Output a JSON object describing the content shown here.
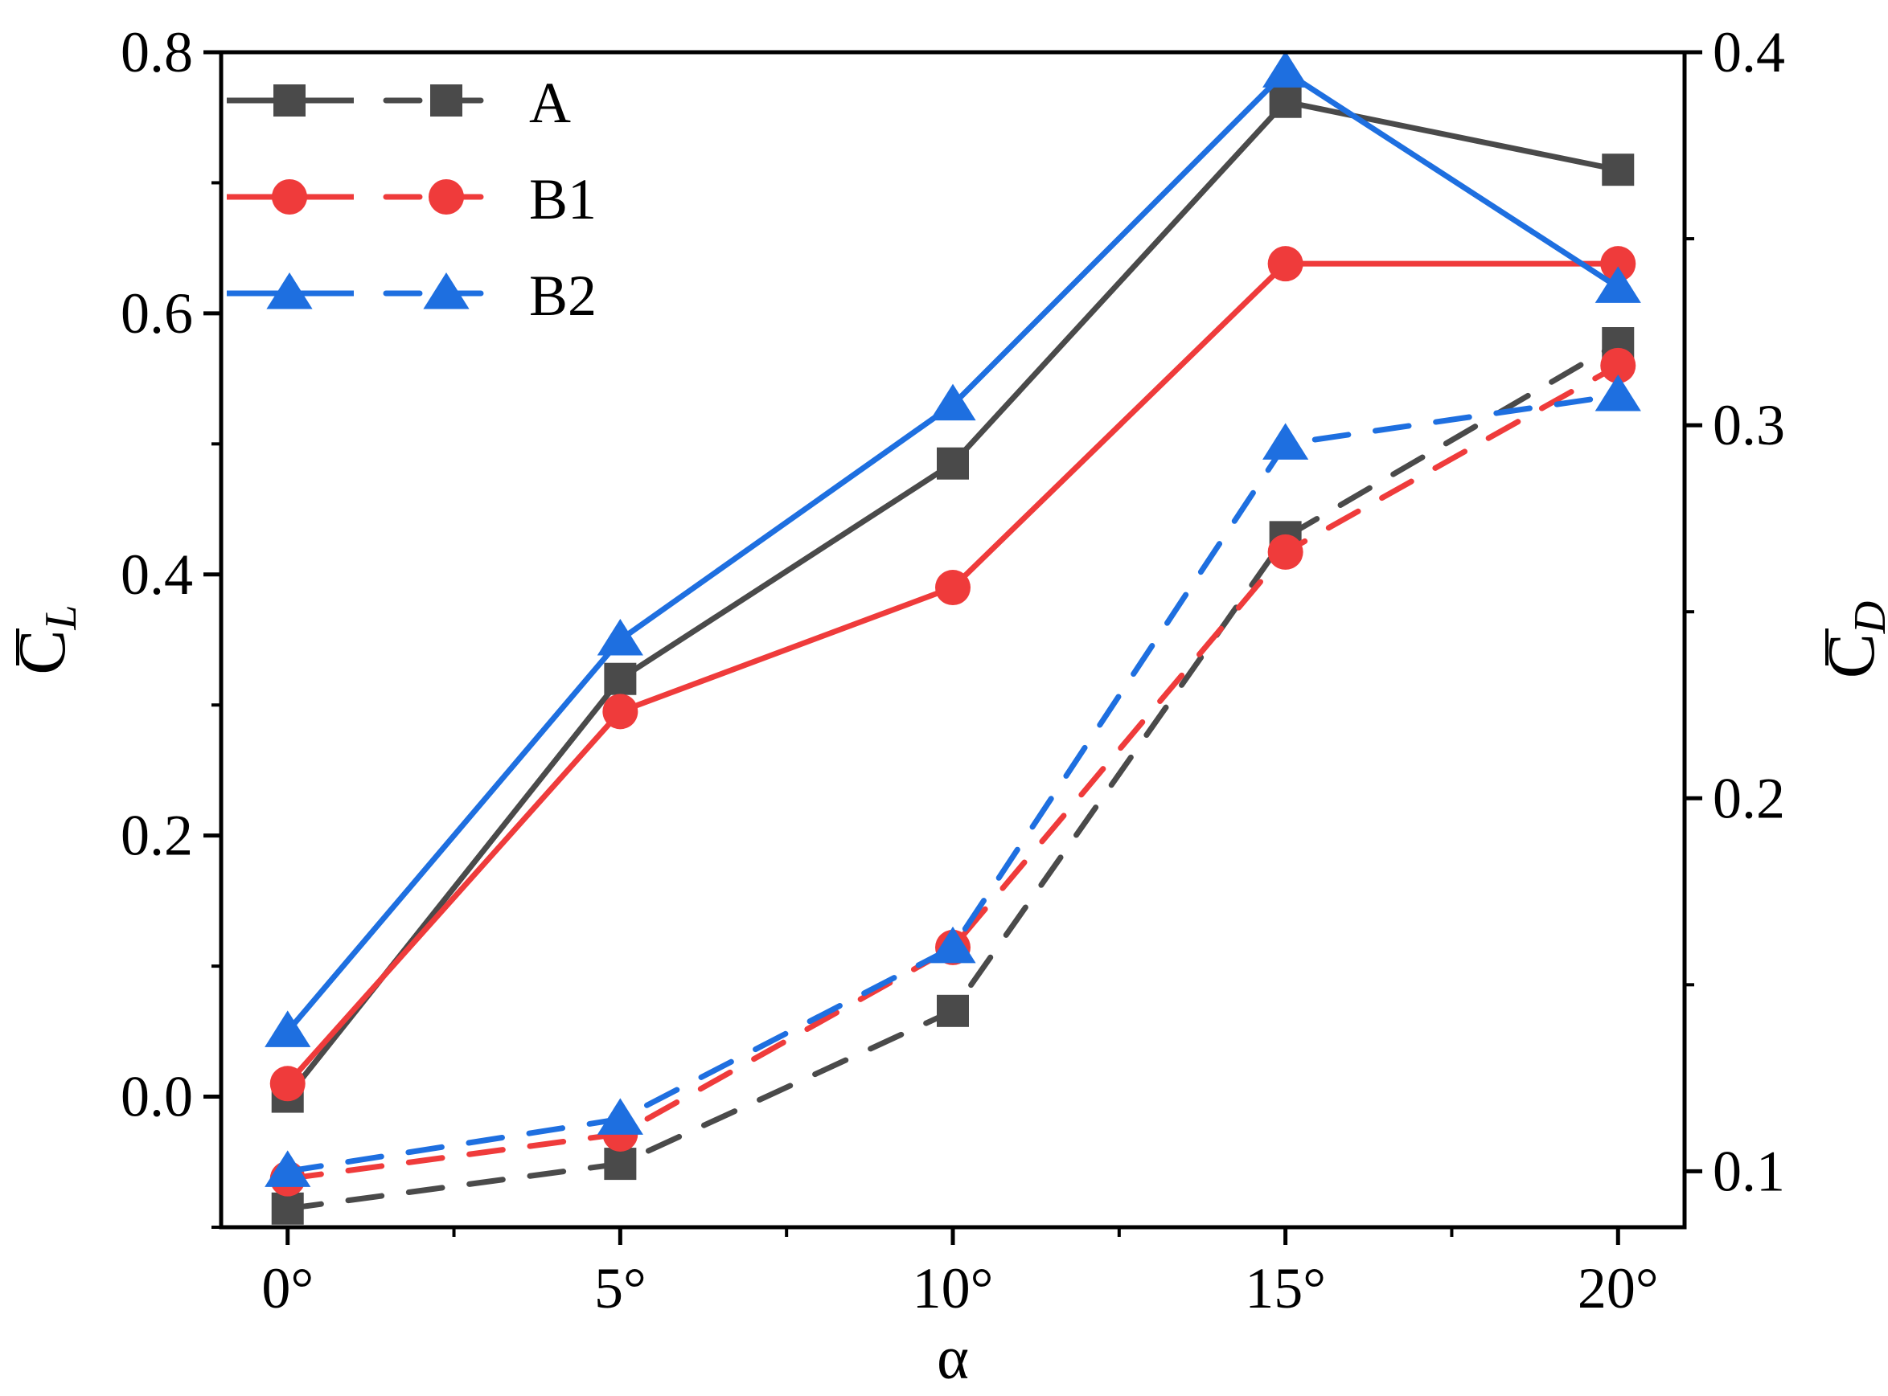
{
  "chart_data": {
    "type": "line",
    "title": "",
    "x": [
      "0°",
      "5°",
      "10°",
      "15°",
      "20°"
    ],
    "x_values": [
      0,
      5,
      10,
      15,
      20
    ],
    "xlabel": "α",
    "xlim": [
      -1,
      21
    ],
    "ylabel_left": {
      "main": "C",
      "sub": "L"
    },
    "ylabel_right": {
      "main": "C",
      "sub": "D"
    },
    "ylim_left": [
      -0.1,
      0.8
    ],
    "ylim_right": [
      0.085,
      0.4
    ],
    "left_ticks": [
      "0.0",
      "0.2",
      "0.4",
      "0.6",
      "0.8"
    ],
    "right_ticks": [
      "0.1",
      "0.2",
      "0.3",
      "0.4"
    ],
    "legend_position": "top-left",
    "legend": [
      "A",
      "B1",
      "B2"
    ],
    "series": [
      {
        "name": "A",
        "axis": "left",
        "style": "solid",
        "marker": "square",
        "color": "#4a4a4a",
        "values": [
          0.0,
          0.32,
          0.485,
          0.762,
          0.71
        ]
      },
      {
        "name": "B1",
        "axis": "left",
        "style": "solid",
        "marker": "circle",
        "color": "#ef3b3b",
        "values": [
          0.01,
          0.295,
          0.39,
          0.638,
          0.638
        ]
      },
      {
        "name": "B2",
        "axis": "left",
        "style": "solid",
        "marker": "triangle",
        "color": "#1e6fe0",
        "values": [
          0.05,
          0.35,
          0.53,
          0.785,
          0.62
        ]
      },
      {
        "name": "A",
        "axis": "right",
        "style": "dashed",
        "marker": "square",
        "color": "#4a4a4a",
        "values": [
          0.09,
          0.102,
          0.143,
          0.27,
          0.322
        ]
      },
      {
        "name": "B1",
        "axis": "right",
        "style": "dashed",
        "marker": "circle",
        "color": "#ef3b3b",
        "values": [
          0.098,
          0.11,
          0.16,
          0.266,
          0.316
        ]
      },
      {
        "name": "B2",
        "axis": "right",
        "style": "dashed",
        "marker": "triangle",
        "color": "#1e6fe0",
        "values": [
          0.1,
          0.114,
          0.16,
          0.295,
          0.308
        ]
      }
    ]
  }
}
